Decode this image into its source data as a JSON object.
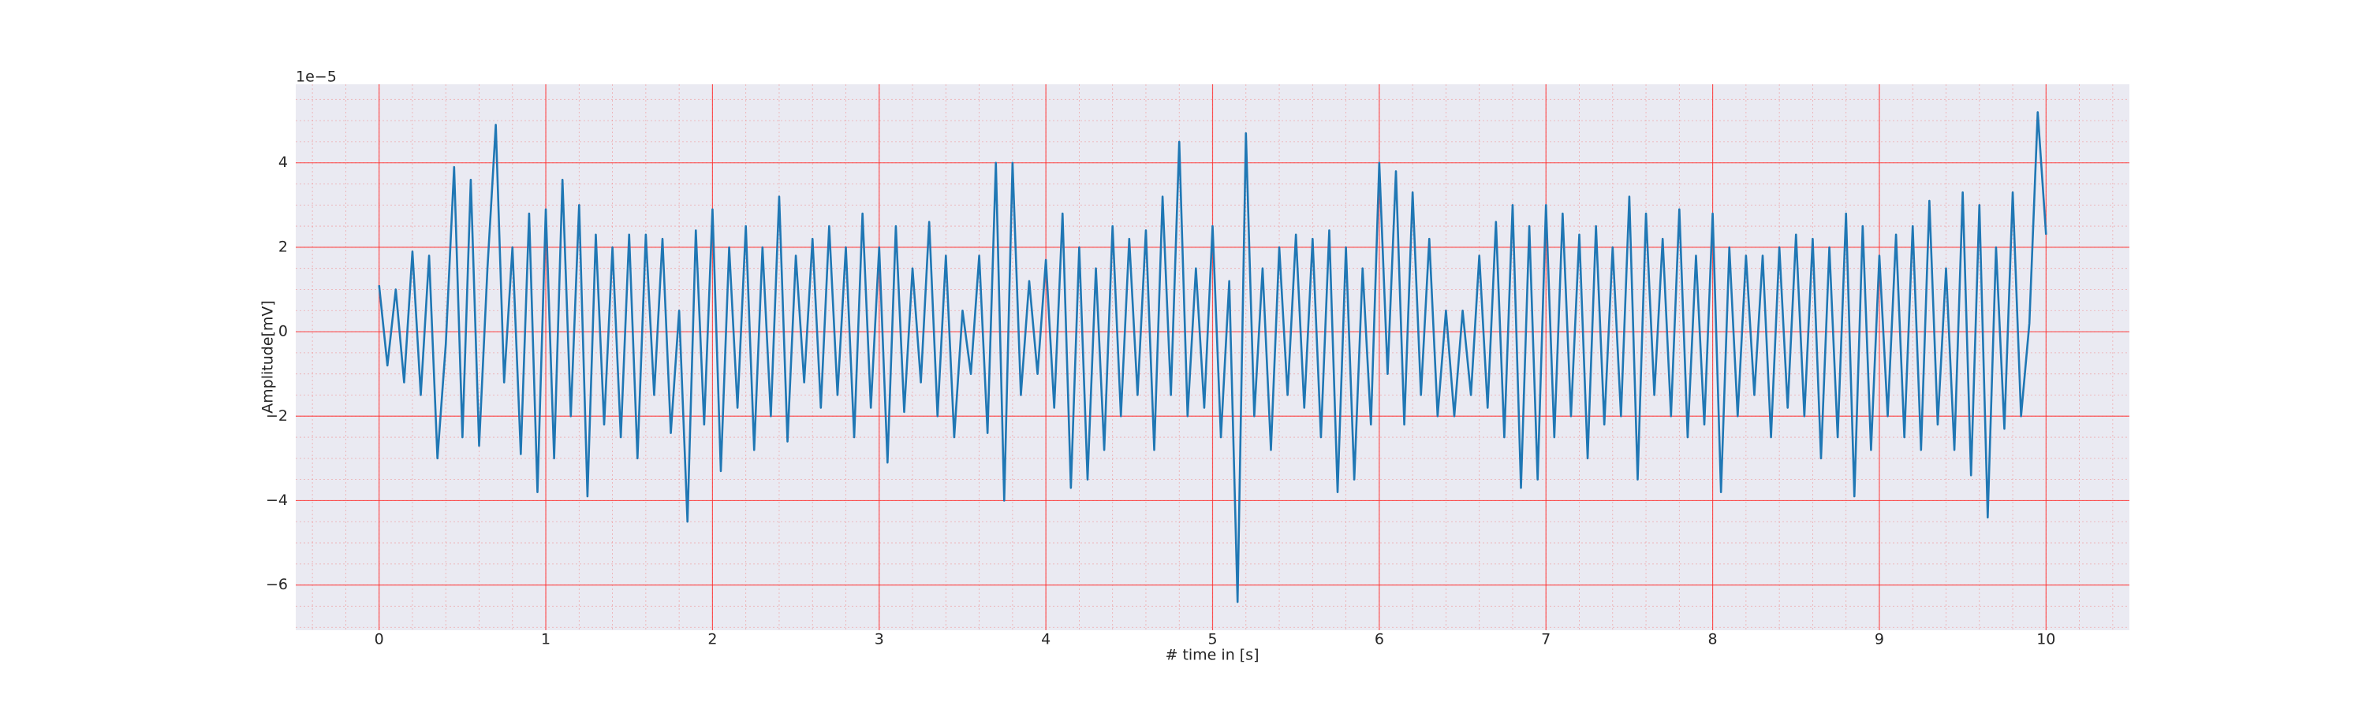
{
  "chart_data": {
    "type": "line",
    "x_label": "# time in [s]",
    "y_label": "Amplitude[mV]",
    "y_offset_text": "1e−5",
    "color": "#1f77b4",
    "grid": true,
    "minor_grid": true,
    "xlim": [
      -0.5,
      10.5
    ],
    "ylim": [
      -7.07,
      5.86
    ],
    "xticks": [
      0,
      1,
      2,
      3,
      4,
      5,
      6,
      7,
      8,
      9,
      10
    ],
    "yticks": [
      {
        "value": -6,
        "label": "−6"
      },
      {
        "value": -4,
        "label": "−4"
      },
      {
        "value": -2,
        "label": "−2"
      },
      0,
      2,
      4
    ],
    "x": [
      0,
      0.05,
      0.1,
      0.15,
      0.2,
      0.25,
      0.3,
      0.35,
      0.4,
      0.45,
      0.5,
      0.55,
      0.6,
      0.65,
      0.7,
      0.75,
      0.8,
      0.85,
      0.9,
      0.95,
      1,
      1.05,
      1.1,
      1.15,
      1.2,
      1.25,
      1.3,
      1.35,
      1.4,
      1.45,
      1.5,
      1.55,
      1.6,
      1.65,
      1.7,
      1.75,
      1.8,
      1.85,
      1.9,
      1.95,
      2,
      2.05,
      2.1,
      2.15,
      2.2,
      2.25,
      2.3,
      2.35,
      2.4,
      2.45,
      2.5,
      2.55,
      2.6,
      2.65,
      2.7,
      2.75,
      2.8,
      2.85,
      2.9,
      2.95,
      3,
      3.05,
      3.1,
      3.15,
      3.2,
      3.25,
      3.3,
      3.35,
      3.4,
      3.45,
      3.5,
      3.55,
      3.6,
      3.65,
      3.7,
      3.75,
      3.8,
      3.85,
      3.9,
      3.95,
      4,
      4.05,
      4.1,
      4.15,
      4.2,
      4.25,
      4.3,
      4.35,
      4.4,
      4.45,
      4.5,
      4.55,
      4.6,
      4.65,
      4.7,
      4.75,
      4.8,
      4.85,
      4.9,
      4.95,
      5,
      5.05,
      5.1,
      5.15,
      5.2,
      5.25,
      5.3,
      5.35,
      5.4,
      5.45,
      5.5,
      5.55,
      5.6,
      5.65,
      5.7,
      5.75,
      5.8,
      5.85,
      5.9,
      5.95,
      6,
      6.05,
      6.1,
      6.15,
      6.2,
      6.25,
      6.3,
      6.35,
      6.4,
      6.45,
      6.5,
      6.55,
      6.6,
      6.65,
      6.7,
      6.75,
      6.8,
      6.85,
      6.9,
      6.95,
      7,
      7.05,
      7.1,
      7.15,
      7.2,
      7.25,
      7.3,
      7.35,
      7.4,
      7.45,
      7.5,
      7.55,
      7.6,
      7.65,
      7.7,
      7.75,
      7.8,
      7.85,
      7.9,
      7.95,
      8,
      8.05,
      8.1,
      8.15,
      8.2,
      8.25,
      8.3,
      8.35,
      8.4,
      8.45,
      8.5,
      8.55,
      8.6,
      8.65,
      8.7,
      8.75,
      8.8,
      8.85,
      8.9,
      8.95,
      9,
      9.05,
      9.1,
      9.15,
      9.2,
      9.25,
      9.3,
      9.35,
      9.4,
      9.45,
      9.5,
      9.55,
      9.6,
      9.65,
      9.7,
      9.75,
      9.8,
      9.85,
      9.9,
      9.95,
      10
    ],
    "values": [
      1.1,
      -0.8,
      1.0,
      -1.2,
      1.9,
      -1.5,
      1.8,
      -3.0,
      -0.3,
      3.9,
      -2.5,
      3.6,
      -2.7,
      1.5,
      4.9,
      -1.2,
      2.0,
      -2.9,
      2.8,
      -3.8,
      2.9,
      -3.0,
      3.6,
      -2.0,
      3.0,
      -3.9,
      2.3,
      -2.2,
      2.0,
      -2.5,
      2.3,
      -3.0,
      2.3,
      -1.5,
      2.2,
      -2.4,
      0.5,
      -4.5,
      2.4,
      -2.2,
      2.9,
      -3.3,
      2.0,
      -1.8,
      2.5,
      -2.8,
      2.0,
      -2.0,
      3.2,
      -2.6,
      1.8,
      -1.2,
      2.2,
      -1.8,
      2.5,
      -1.5,
      2.0,
      -2.5,
      2.8,
      -1.8,
      2.0,
      -3.1,
      2.5,
      -1.9,
      1.5,
      -1.2,
      2.6,
      -2.0,
      1.8,
      -2.5,
      0.5,
      -1.0,
      1.8,
      -2.4,
      4.0,
      -4.0,
      4.0,
      -1.5,
      1.2,
      -1.0,
      1.7,
      -1.8,
      2.8,
      -3.7,
      2.0,
      -3.5,
      1.5,
      -2.8,
      2.5,
      -2.0,
      2.2,
      -1.5,
      2.4,
      -2.8,
      3.2,
      -1.5,
      4.5,
      -2.0,
      1.5,
      -1.8,
      2.5,
      -2.5,
      1.2,
      -6.4,
      4.7,
      -2.0,
      1.5,
      -2.8,
      2.0,
      -1.5,
      2.3,
      -1.8,
      2.2,
      -2.5,
      2.4,
      -3.8,
      2.0,
      -3.5,
      1.5,
      -2.2,
      4.0,
      -1.0,
      3.8,
      -2.2,
      3.3,
      -1.5,
      2.2,
      -2.0,
      0.5,
      -2.0,
      0.5,
      -1.5,
      1.8,
      -1.8,
      2.6,
      -2.5,
      3.0,
      -3.7,
      2.5,
      -3.5,
      3.0,
      -2.5,
      2.8,
      -2.0,
      2.3,
      -3.0,
      2.5,
      -2.2,
      2.0,
      -2.0,
      3.2,
      -3.5,
      2.8,
      -1.5,
      2.2,
      -2.0,
      2.9,
      -2.5,
      1.8,
      -2.2,
      2.8,
      -3.8,
      2.0,
      -2.0,
      1.8,
      -1.5,
      1.8,
      -2.5,
      2.0,
      -1.8,
      2.3,
      -2.0,
      2.2,
      -3.0,
      2.0,
      -2.5,
      2.8,
      -3.9,
      2.5,
      -2.8,
      1.8,
      -2.0,
      2.3,
      -2.5,
      2.5,
      -2.8,
      3.1,
      -2.2,
      1.5,
      -2.8,
      3.3,
      -3.4,
      3.0,
      -4.4,
      2.0,
      -2.3,
      3.3,
      -2.0,
      0.2,
      5.2,
      2.3
    ]
  }
}
